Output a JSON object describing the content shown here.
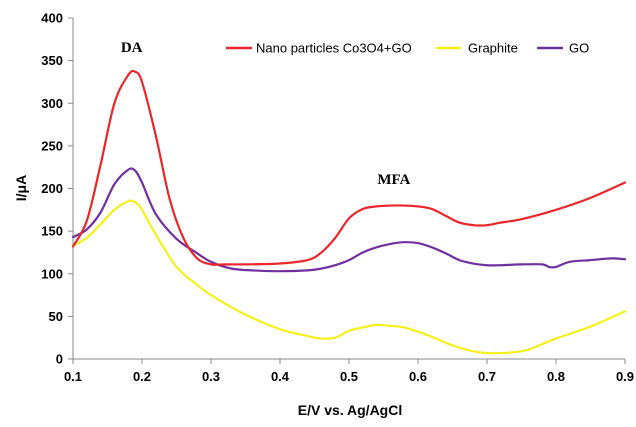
{
  "chart_data": {
    "type": "line",
    "title": "",
    "xlabel": "E/V vs. Ag/AgCl",
    "ylabel": "I/μA",
    "xlim": [
      0.1,
      0.9
    ],
    "ylim": [
      0,
      400
    ],
    "x_ticks": [
      "0.1",
      "0.2",
      "0.3",
      "0.4",
      "0.5",
      "0.6",
      "0.7",
      "0.8",
      "0.9"
    ],
    "y_ticks": [
      "0",
      "50",
      "100",
      "150",
      "200",
      "250",
      "300",
      "350",
      "400"
    ],
    "grid": false,
    "legend_position": "top",
    "annotations": [
      {
        "text": "DA",
        "x": 0.185,
        "y": 360
      },
      {
        "text": "MFA",
        "x": 0.565,
        "y": 205
      }
    ],
    "series": [
      {
        "name": "Nano particles Co3O4+GO",
        "color": "#e8262b",
        "x": [
          0.1,
          0.12,
          0.14,
          0.16,
          0.18,
          0.19,
          0.2,
          0.22,
          0.24,
          0.26,
          0.28,
          0.3,
          0.32,
          0.35,
          0.4,
          0.44,
          0.46,
          0.48,
          0.5,
          0.52,
          0.54,
          0.56,
          0.58,
          0.6,
          0.62,
          0.64,
          0.66,
          0.68,
          0.7,
          0.72,
          0.75,
          0.8,
          0.85,
          0.9
        ],
        "y": [
          132,
          162,
          228,
          300,
          333,
          337,
          325,
          262,
          188,
          142,
          118,
          111,
          111,
          111,
          112,
          116,
          125,
          142,
          165,
          176,
          179,
          180,
          180,
          179,
          176,
          168,
          160,
          157,
          157,
          160,
          164,
          175,
          189,
          207
        ]
      },
      {
        "name": "Graphite",
        "color": "#f5f019",
        "x": [
          0.1,
          0.12,
          0.14,
          0.16,
          0.18,
          0.19,
          0.2,
          0.22,
          0.25,
          0.28,
          0.3,
          0.35,
          0.4,
          0.44,
          0.46,
          0.48,
          0.5,
          0.52,
          0.54,
          0.56,
          0.58,
          0.6,
          0.62,
          0.65,
          0.68,
          0.7,
          0.72,
          0.74,
          0.76,
          0.8,
          0.85,
          0.9
        ],
        "y": [
          133,
          142,
          158,
          175,
          185,
          184,
          175,
          146,
          108,
          87,
          75,
          52,
          35,
          27,
          24,
          25,
          33,
          37,
          40,
          39,
          37,
          32,
          26,
          16,
          9,
          7,
          7,
          8,
          11,
          24,
          38,
          56
        ]
      },
      {
        "name": "GO",
        "color": "#7030a0",
        "x": [
          0.1,
          0.12,
          0.14,
          0.16,
          0.18,
          0.19,
          0.2,
          0.22,
          0.25,
          0.28,
          0.3,
          0.33,
          0.36,
          0.4,
          0.44,
          0.46,
          0.48,
          0.5,
          0.52,
          0.54,
          0.56,
          0.58,
          0.6,
          0.62,
          0.64,
          0.66,
          0.68,
          0.7,
          0.72,
          0.75,
          0.78,
          0.79,
          0.8,
          0.82,
          0.85,
          0.88,
          0.9
        ],
        "y": [
          143,
          152,
          172,
          205,
          222,
          221,
          207,
          170,
          141,
          124,
          114,
          106,
          104,
          103,
          104,
          106,
          110,
          116,
          125,
          131,
          135,
          137,
          136,
          131,
          124,
          116,
          112,
          110,
          110,
          111,
          111,
          108,
          108,
          114,
          116,
          118,
          117
        ]
      }
    ]
  }
}
